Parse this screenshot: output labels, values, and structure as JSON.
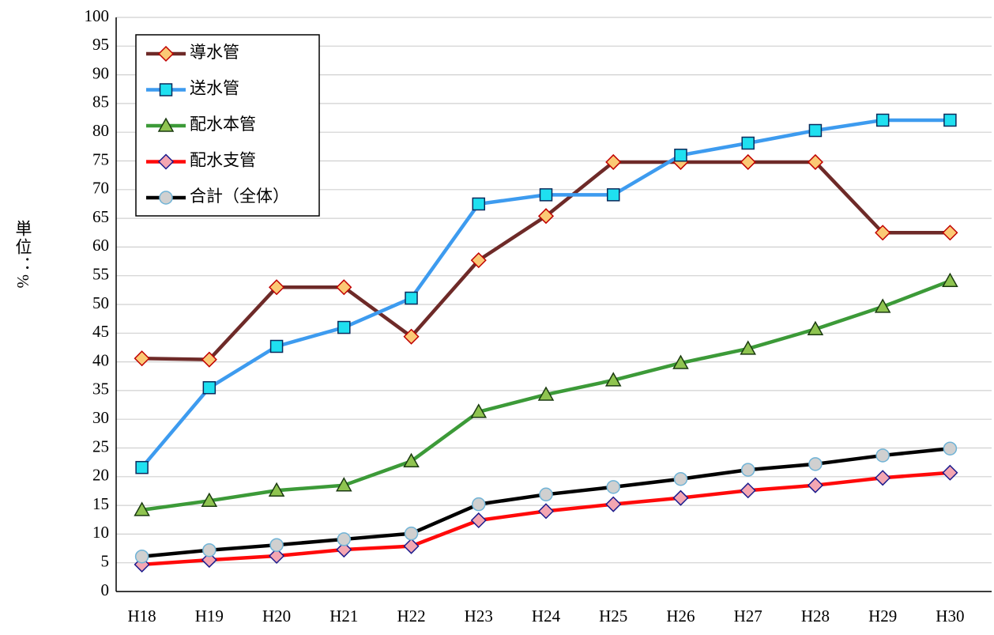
{
  "chart_data": {
    "type": "line",
    "y_label": "単位：%",
    "categories": [
      "H18",
      "H19",
      "H20",
      "H21",
      "H22",
      "H23",
      "H24",
      "H25",
      "H26",
      "H27",
      "H28",
      "H29",
      "H30"
    ],
    "series": [
      {
        "name": "導水管",
        "color": "#6e2a28",
        "marker": "diamond",
        "marker_fill": "#fbc975",
        "marker_edge": "#c00000",
        "values": [
          40.6,
          40.4,
          53.0,
          53.0,
          44.4,
          57.7,
          65.4,
          74.8,
          74.8,
          74.8,
          74.8,
          62.5,
          62.5
        ]
      },
      {
        "name": "送水管",
        "color": "#3d9bef",
        "marker": "square",
        "marker_fill": "#1fe0f0",
        "marker_edge": "#0a2a5c",
        "values": [
          21.6,
          35.5,
          42.7,
          46.0,
          51.1,
          67.5,
          69.1,
          69.1,
          76.0,
          78.1,
          80.3,
          82.1,
          82.1
        ]
      },
      {
        "name": "配水本管",
        "color": "#3c9a38",
        "marker": "triangle",
        "marker_fill": "#8fc450",
        "marker_edge": "#1a3a10",
        "values": [
          14.2,
          15.8,
          17.6,
          18.5,
          22.7,
          31.3,
          34.3,
          36.8,
          39.8,
          42.3,
          45.7,
          49.6,
          54.1
        ]
      },
      {
        "name": "配水支管",
        "color": "#ff0a0a",
        "marker": "diamond",
        "marker_fill": "#f4a6b2",
        "marker_edge": "#1a1a8c",
        "values": [
          4.7,
          5.5,
          6.2,
          7.3,
          7.9,
          12.4,
          14.0,
          15.2,
          16.3,
          17.6,
          18.5,
          19.8,
          20.7
        ]
      },
      {
        "name": "合計（全体）",
        "color": "#000000",
        "marker": "circle",
        "marker_fill": "#d0d0d0",
        "marker_edge": "#6fb3d6",
        "values": [
          6.1,
          7.2,
          8.1,
          9.1,
          10.1,
          15.2,
          16.9,
          18.2,
          19.6,
          21.2,
          22.2,
          23.7,
          24.9
        ]
      }
    ],
    "ylim": [
      0,
      100
    ],
    "yticks": [
      0,
      5,
      10,
      15,
      20,
      25,
      30,
      35,
      40,
      45,
      50,
      55,
      60,
      65,
      70,
      75,
      80,
      85,
      90,
      95,
      100
    ],
    "grid": true,
    "legend": "upper left"
  }
}
